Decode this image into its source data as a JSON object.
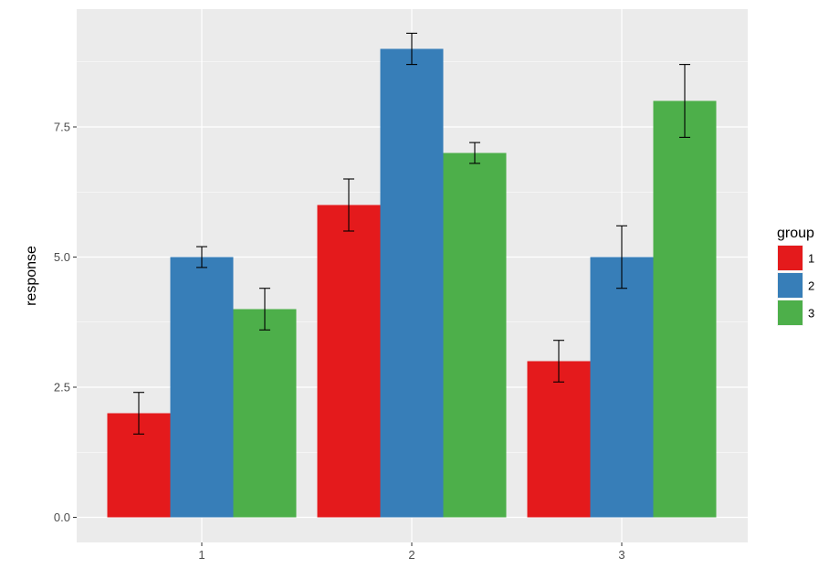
{
  "chart_data": {
    "type": "bar",
    "subtype": "grouped-with-error-bars",
    "categories": [
      "1",
      "2",
      "3"
    ],
    "xlabel": "",
    "ylabel": "response",
    "ylim": [
      0,
      9.3
    ],
    "yticks": [
      0.0,
      2.5,
      5.0,
      7.5
    ],
    "ytick_labels": [
      "0.0",
      "2.5",
      "5.0",
      "7.5"
    ],
    "grid": true,
    "legend": {
      "title": "group",
      "position": "right"
    },
    "series": [
      {
        "name": "1",
        "color": "#E41A1C",
        "values": [
          2,
          6,
          3
        ],
        "lower": [
          1.6,
          5.5,
          2.6
        ],
        "upper": [
          2.4,
          6.5,
          3.4
        ]
      },
      {
        "name": "2",
        "color": "#377EB8",
        "values": [
          5,
          9,
          5
        ],
        "lower": [
          4.8,
          8.7,
          4.4
        ],
        "upper": [
          5.2,
          9.3,
          5.6
        ]
      },
      {
        "name": "3",
        "color": "#4DAF4A",
        "values": [
          4,
          7,
          8
        ],
        "lower": [
          3.6,
          6.8,
          7.3
        ],
        "upper": [
          4.4,
          7.2,
          8.7
        ]
      }
    ]
  }
}
